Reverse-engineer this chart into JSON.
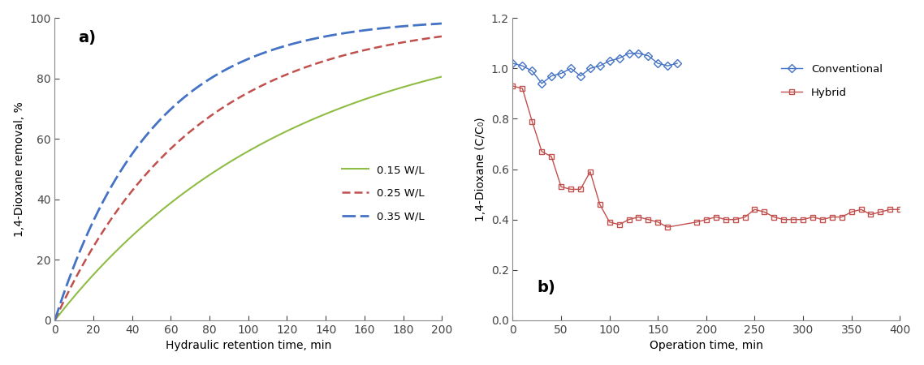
{
  "panel_a": {
    "title": "a)",
    "xlabel": "Hydraulic retention time, min",
    "ylabel": "1,4-Dioxane removal, %",
    "xlim": [
      0,
      200
    ],
    "ylim": [
      0,
      100
    ],
    "xticks": [
      0,
      20,
      40,
      60,
      80,
      100,
      120,
      140,
      160,
      180,
      200
    ],
    "yticks": [
      0,
      20,
      40,
      60,
      80,
      100
    ],
    "curves": [
      {
        "label": "0.15 W/L",
        "k": 0.0082,
        "color": "#8fbc45",
        "linestyle": "solid",
        "linewidth": 1.5
      },
      {
        "label": "0.25 W/L",
        "k": 0.014,
        "color": "#c0504d",
        "linestyle": "dashed",
        "linewidth": 1.8
      },
      {
        "label": "0.35 W/L",
        "k": 0.02,
        "color": "#4472c4",
        "linestyle": "dashdot",
        "linewidth": 2.0
      }
    ],
    "legend_loc": "center right"
  },
  "panel_b": {
    "title": "b)",
    "xlabel": "Operation time, min",
    "ylabel": "1,4-Dioxane (C/C₀)",
    "xlim": [
      0,
      400
    ],
    "ylim": [
      0.0,
      1.2
    ],
    "xticks": [
      0,
      50,
      100,
      150,
      200,
      250,
      300,
      350,
      400
    ],
    "yticks": [
      0.0,
      0.2,
      0.4,
      0.6,
      0.8,
      1.0,
      1.2
    ],
    "conventional_x": [
      0,
      10,
      20,
      30,
      40,
      50,
      60,
      70,
      80,
      90,
      100,
      110,
      120,
      130,
      140,
      150,
      160,
      170
    ],
    "conventional_y": [
      1.02,
      1.01,
      0.99,
      0.94,
      0.97,
      0.98,
      1.0,
      0.97,
      1.0,
      1.01,
      1.03,
      1.04,
      1.06,
      1.06,
      1.05,
      1.02,
      1.01,
      1.02
    ],
    "hybrid_x": [
      0,
      10,
      20,
      30,
      40,
      50,
      60,
      70,
      80,
      90,
      100,
      110,
      120,
      130,
      140,
      150,
      160,
      190,
      200,
      210,
      220,
      230,
      240,
      250,
      260,
      270,
      280,
      290,
      300,
      310,
      320,
      330,
      340,
      350,
      360,
      370,
      380,
      390,
      400
    ],
    "hybrid_y": [
      0.93,
      0.92,
      0.79,
      0.67,
      0.65,
      0.53,
      0.52,
      0.52,
      0.59,
      0.46,
      0.39,
      0.38,
      0.4,
      0.41,
      0.4,
      0.39,
      0.37,
      0.39,
      0.4,
      0.41,
      0.4,
      0.4,
      0.41,
      0.44,
      0.43,
      0.41,
      0.4,
      0.4,
      0.4,
      0.41,
      0.4,
      0.41,
      0.41,
      0.43,
      0.44,
      0.42,
      0.43,
      0.44,
      0.44
    ],
    "conventional_color": "#4472c4",
    "hybrid_color": "#c0504d",
    "legend_loc": "upper right"
  }
}
